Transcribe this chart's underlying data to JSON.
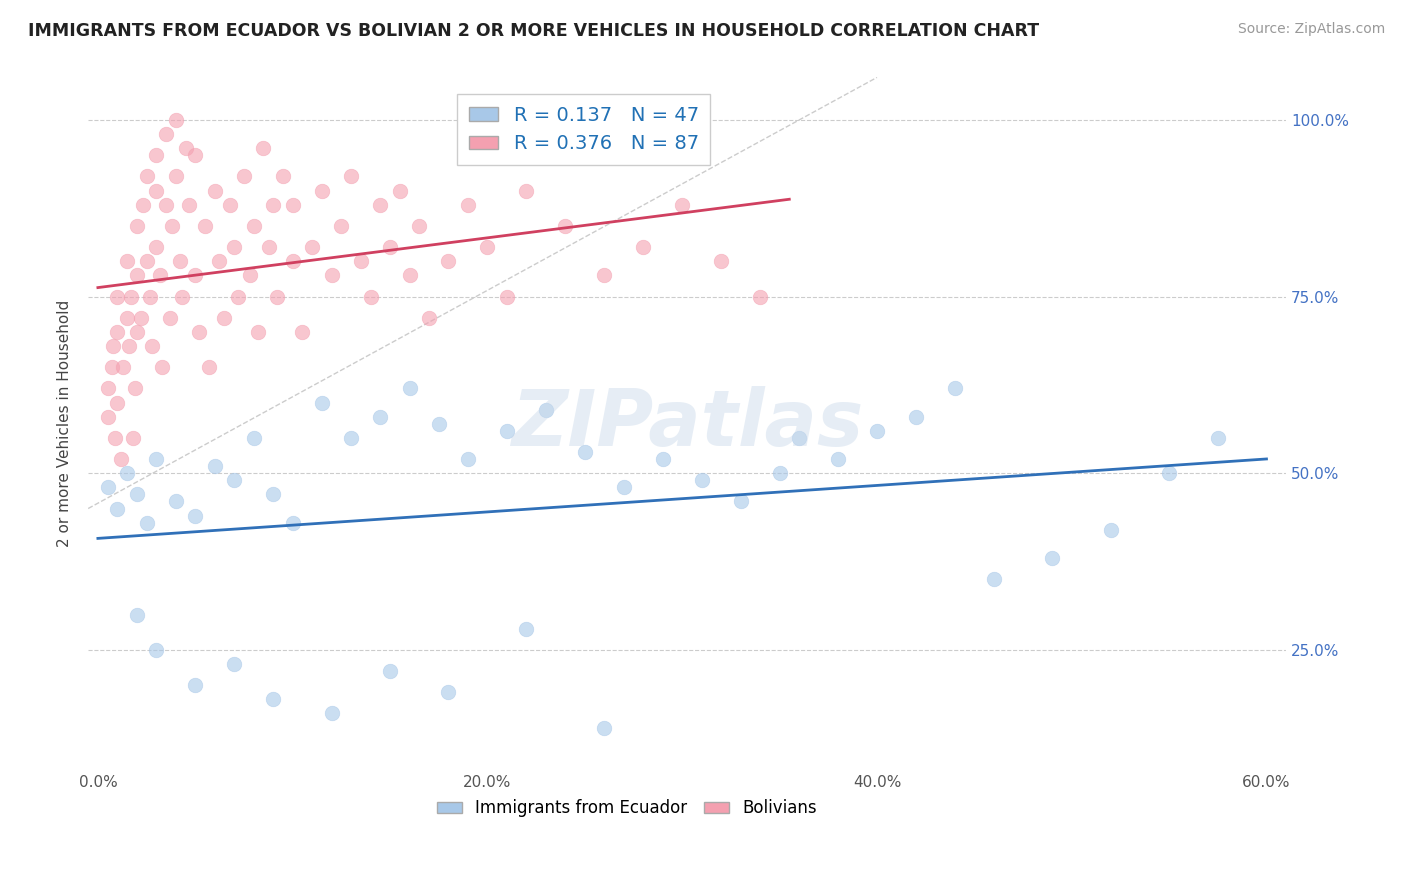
{
  "title": "IMMIGRANTS FROM ECUADOR VS BOLIVIAN 2 OR MORE VEHICLES IN HOUSEHOLD CORRELATION CHART",
  "source_text": "Source: ZipAtlas.com",
  "ylabel": "2 or more Vehicles in Household",
  "legend_labels": [
    "Immigrants from Ecuador",
    "Bolivians"
  ],
  "r_ecuador": 0.137,
  "n_ecuador": 47,
  "r_bolivian": 0.376,
  "n_bolivian": 87,
  "blue_color": "#a8c8e8",
  "pink_color": "#f4a0b0",
  "blue_line_color": "#3070b8",
  "pink_line_color": "#d04060",
  "watermark": "ZIPatlas",
  "xlim": [
    -0.005,
    0.61
  ],
  "ylim": [
    0.08,
    1.06
  ],
  "xtick_labels": [
    "0.0%",
    "",
    "20.0%",
    "",
    "40.0%",
    "",
    "60.0%"
  ],
  "xtick_vals": [
    0.0,
    0.1,
    0.2,
    0.3,
    0.4,
    0.5,
    0.6
  ],
  "ytick_labels": [
    "25.0%",
    "50.0%",
    "75.0%",
    "100.0%"
  ],
  "ytick_vals": [
    0.25,
    0.5,
    0.75,
    1.0
  ],
  "ecu_x": [
    0.005,
    0.01,
    0.015,
    0.02,
    0.025,
    0.03,
    0.04,
    0.05,
    0.06,
    0.07,
    0.08,
    0.09,
    0.1,
    0.115,
    0.13,
    0.145,
    0.16,
    0.175,
    0.19,
    0.21,
    0.23,
    0.25,
    0.27,
    0.29,
    0.31,
    0.33,
    0.35,
    0.36,
    0.38,
    0.4,
    0.42,
    0.44,
    0.46,
    0.49,
    0.52,
    0.55,
    0.575,
    0.02,
    0.03,
    0.05,
    0.07,
    0.09,
    0.12,
    0.15,
    0.18,
    0.22,
    0.26
  ],
  "ecu_y": [
    0.48,
    0.45,
    0.5,
    0.47,
    0.43,
    0.52,
    0.46,
    0.44,
    0.51,
    0.49,
    0.55,
    0.47,
    0.43,
    0.6,
    0.55,
    0.58,
    0.62,
    0.57,
    0.52,
    0.56,
    0.59,
    0.53,
    0.48,
    0.52,
    0.49,
    0.46,
    0.5,
    0.55,
    0.52,
    0.56,
    0.58,
    0.62,
    0.35,
    0.38,
    0.42,
    0.5,
    0.55,
    0.3,
    0.25,
    0.2,
    0.23,
    0.18,
    0.16,
    0.22,
    0.19,
    0.28,
    0.14
  ],
  "bol_x": [
    0.005,
    0.005,
    0.007,
    0.008,
    0.009,
    0.01,
    0.01,
    0.01,
    0.012,
    0.013,
    0.015,
    0.015,
    0.016,
    0.017,
    0.018,
    0.019,
    0.02,
    0.02,
    0.02,
    0.022,
    0.023,
    0.025,
    0.025,
    0.027,
    0.028,
    0.03,
    0.03,
    0.03,
    0.032,
    0.033,
    0.035,
    0.035,
    0.037,
    0.038,
    0.04,
    0.04,
    0.042,
    0.043,
    0.045,
    0.047,
    0.05,
    0.05,
    0.052,
    0.055,
    0.057,
    0.06,
    0.062,
    0.065,
    0.068,
    0.07,
    0.072,
    0.075,
    0.078,
    0.08,
    0.082,
    0.085,
    0.088,
    0.09,
    0.092,
    0.095,
    0.1,
    0.1,
    0.105,
    0.11,
    0.115,
    0.12,
    0.125,
    0.13,
    0.135,
    0.14,
    0.145,
    0.15,
    0.155,
    0.16,
    0.165,
    0.17,
    0.18,
    0.19,
    0.2,
    0.21,
    0.22,
    0.24,
    0.26,
    0.28,
    0.3,
    0.32,
    0.34
  ],
  "bol_y": [
    0.58,
    0.62,
    0.65,
    0.68,
    0.55,
    0.6,
    0.7,
    0.75,
    0.52,
    0.65,
    0.72,
    0.8,
    0.68,
    0.75,
    0.55,
    0.62,
    0.78,
    0.85,
    0.7,
    0.72,
    0.88,
    0.92,
    0.8,
    0.75,
    0.68,
    0.9,
    0.95,
    0.82,
    0.78,
    0.65,
    0.98,
    0.88,
    0.72,
    0.85,
    1.0,
    0.92,
    0.8,
    0.75,
    0.96,
    0.88,
    0.78,
    0.95,
    0.7,
    0.85,
    0.65,
    0.9,
    0.8,
    0.72,
    0.88,
    0.82,
    0.75,
    0.92,
    0.78,
    0.85,
    0.7,
    0.96,
    0.82,
    0.88,
    0.75,
    0.92,
    0.8,
    0.88,
    0.7,
    0.82,
    0.9,
    0.78,
    0.85,
    0.92,
    0.8,
    0.75,
    0.88,
    0.82,
    0.9,
    0.78,
    0.85,
    0.72,
    0.8,
    0.88,
    0.82,
    0.75,
    0.9,
    0.85,
    0.78,
    0.82,
    0.88,
    0.8,
    0.75
  ]
}
